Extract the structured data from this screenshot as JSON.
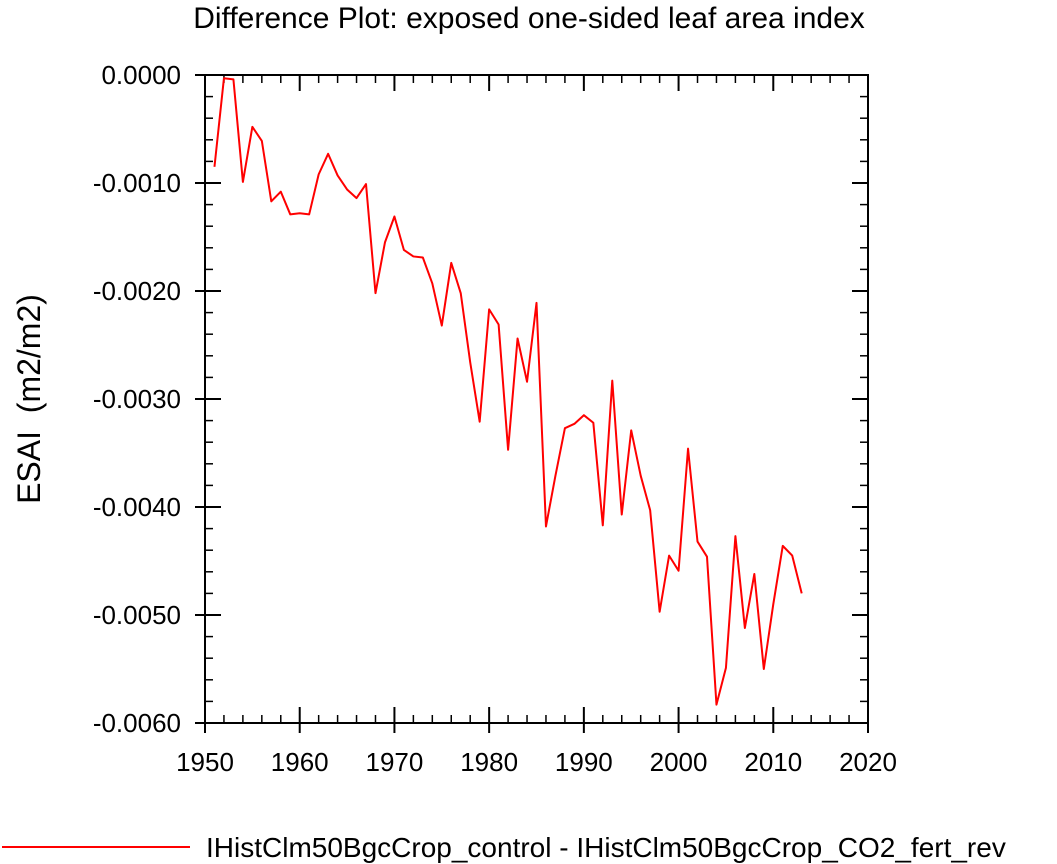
{
  "chart_data": {
    "type": "line",
    "title": "Difference Plot: exposed one-sided leaf area index",
    "ylabel": "ESAI  (m2/m2)",
    "xlabel": "",
    "xlim": [
      1950,
      2020
    ],
    "ylim": [
      -0.006,
      0.0
    ],
    "xticks": [
      1950,
      1960,
      1970,
      1980,
      1990,
      2000,
      2010,
      2020
    ],
    "yticks": [
      0.0,
      -0.001,
      -0.002,
      -0.003,
      -0.004,
      -0.005,
      -0.006
    ],
    "ytick_labels": [
      "0.0000",
      "-0.0010",
      "-0.0020",
      "-0.0030",
      "-0.0040",
      "-0.0050",
      "-0.0060"
    ],
    "grid": false,
    "legend_position": "bottom",
    "series": [
      {
        "name": "IHistClm50BgcCrop_control - IHistClm50BgcCrop_CO2_fert_rev",
        "color": "#ff0000",
        "x": [
          1951,
          1952,
          1953,
          1954,
          1955,
          1956,
          1957,
          1958,
          1959,
          1960,
          1961,
          1962,
          1963,
          1964,
          1965,
          1966,
          1967,
          1968,
          1969,
          1970,
          1971,
          1972,
          1973,
          1974,
          1975,
          1976,
          1977,
          1978,
          1979,
          1980,
          1981,
          1982,
          1983,
          1984,
          1985,
          1986,
          1987,
          1988,
          1989,
          1990,
          1991,
          1992,
          1993,
          1994,
          1995,
          1996,
          1997,
          1998,
          1999,
          2000,
          2001,
          2002,
          2003,
          2004,
          2005,
          2006,
          2007,
          2008,
          2009,
          2010,
          2011,
          2012,
          2013
        ],
        "y": [
          -0.00085,
          -3e-05,
          -4e-05,
          -0.00099,
          -0.00048,
          -0.00061,
          -0.00117,
          -0.00108,
          -0.00129,
          -0.00128,
          -0.00129,
          -0.00092,
          -0.00073,
          -0.00093,
          -0.00106,
          -0.00114,
          -0.00101,
          -0.00202,
          -0.00155,
          -0.00131,
          -0.00162,
          -0.00168,
          -0.00169,
          -0.00193,
          -0.00232,
          -0.00174,
          -0.00202,
          -0.00266,
          -0.00321,
          -0.00217,
          -0.00231,
          -0.00347,
          -0.00244,
          -0.00284,
          -0.00211,
          -0.00418,
          -0.00371,
          -0.00327,
          -0.00323,
          -0.00315,
          -0.00322,
          -0.00417,
          -0.00283,
          -0.00407,
          -0.00329,
          -0.00371,
          -0.00403,
          -0.00497,
          -0.00445,
          -0.00459,
          -0.00346,
          -0.00432,
          -0.00446,
          -0.00583,
          -0.00549,
          -0.00427,
          -0.00512,
          -0.00462,
          -0.0055,
          -0.0049,
          -0.00436,
          -0.00445,
          -0.0048
        ]
      }
    ]
  }
}
